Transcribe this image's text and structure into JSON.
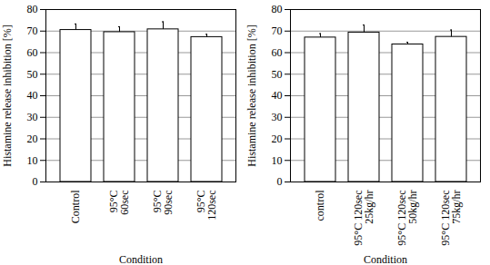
{
  "chart_data": [
    {
      "type": "bar",
      "x_label": "Condition",
      "y_label": "Histamine release inhibition [%]",
      "categories": [
        "Control",
        "95°C\n60sec",
        "95°C\n90sec",
        "95°C\n120sec"
      ],
      "values": [
        70.5,
        69.5,
        70.8,
        67.2
      ],
      "errors": [
        2.8,
        2.5,
        3.5,
        1.3
      ],
      "color": "#ffffff",
      "ylim": [
        0,
        80
      ],
      "yticks": [
        0,
        10,
        20,
        30,
        40,
        50,
        60,
        70,
        80
      ],
      "grid": true
    },
    {
      "type": "bar",
      "x_label": "Condition",
      "y_label": "Histamine release inhibition [%]",
      "categories": [
        "control",
        "95°C 120sec\n25kg/hr",
        "95°C 120sec\n50kg/hr",
        "95°C 120sec\n75kg/hr"
      ],
      "values": [
        67.0,
        69.3,
        63.8,
        67.3
      ],
      "errors": [
        1.8,
        3.5,
        1.0,
        3.2
      ],
      "color": "#ffffff",
      "ylim": [
        0,
        80
      ],
      "yticks": [
        0,
        10,
        20,
        30,
        40,
        50,
        60,
        70,
        80
      ],
      "grid": true
    }
  ]
}
